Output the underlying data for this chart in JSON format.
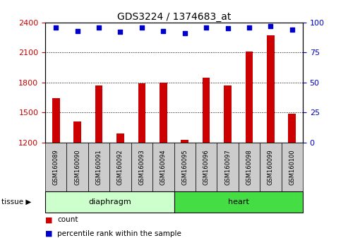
{
  "title": "GDS3224 / 1374683_at",
  "samples": [
    "GSM160089",
    "GSM160090",
    "GSM160091",
    "GSM160092",
    "GSM160093",
    "GSM160094",
    "GSM160095",
    "GSM160096",
    "GSM160097",
    "GSM160098",
    "GSM160099",
    "GSM160100"
  ],
  "counts": [
    1640,
    1410,
    1770,
    1290,
    1790,
    1800,
    1230,
    1850,
    1770,
    2110,
    2270,
    1490
  ],
  "percentiles": [
    96,
    93,
    96,
    92,
    96,
    93,
    91,
    96,
    95,
    96,
    97,
    94
  ],
  "groups": [
    {
      "label": "diaphragm",
      "start": 0,
      "end": 6,
      "color_light": "#ccffcc",
      "color_dark": "#44dd44"
    },
    {
      "label": "heart",
      "start": 6,
      "end": 12,
      "color_light": "#44dd44",
      "color_dark": "#44dd44"
    }
  ],
  "bar_color": "#cc0000",
  "dot_color": "#0000cc",
  "ylim_left": [
    1200,
    2400
  ],
  "ylim_right": [
    0,
    100
  ],
  "yticks_left": [
    1200,
    1500,
    1800,
    2100,
    2400
  ],
  "yticks_right": [
    0,
    25,
    50,
    75,
    100
  ],
  "ylabel_left_color": "#cc0000",
  "ylabel_right_color": "#0000cc",
  "background_color": "#ffffff",
  "plot_bg_color": "#ffffff",
  "legend_count_label": "count",
  "legend_percentile_label": "percentile rank within the sample",
  "tissue_label": "tissue",
  "diaphragm_color": "#ccffcc",
  "heart_color": "#44dd44",
  "sample_box_color": "#cccccc"
}
